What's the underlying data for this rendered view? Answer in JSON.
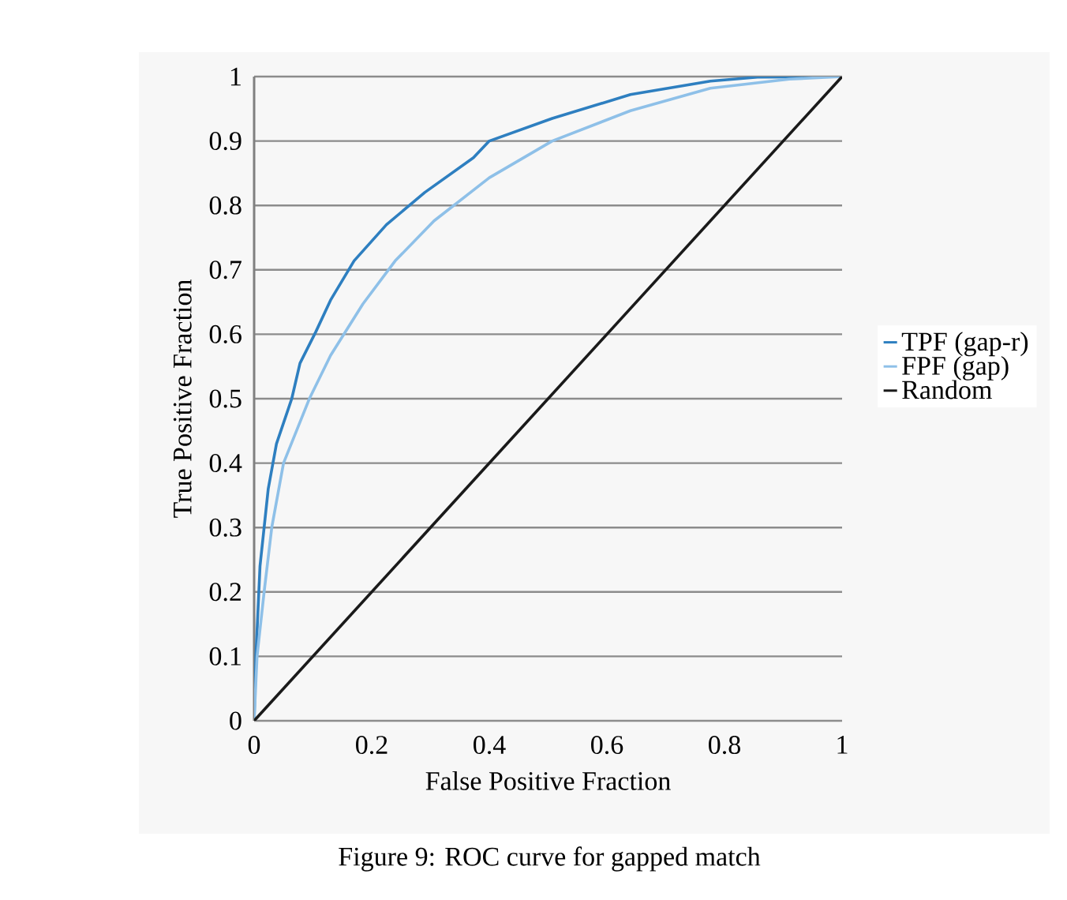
{
  "chart_data": {
    "type": "line",
    "xlabel": "False Positive Fraction",
    "ylabel": "True Positive Fraction",
    "annotations": [
      "Figure 9: ROC curve for gapped match"
    ],
    "xlim": [
      0,
      1
    ],
    "ylim": [
      0,
      1
    ],
    "xticks": [
      0,
      0.2,
      0.4,
      0.6,
      0.8,
      1
    ],
    "yticks": [
      0,
      0.1,
      0.2,
      0.3,
      0.4,
      0.5,
      0.6,
      0.7,
      0.8,
      0.9,
      1
    ],
    "grid": "y",
    "legend": "right",
    "marker": "none",
    "line_style": "solid",
    "series": [
      {
        "name": "TPF (gap-r)",
        "color": "#2e7fc0",
        "x": [
          0,
          0.003,
          0.01,
          0.024,
          0.038,
          0.064,
          0.078,
          0.105,
          0.13,
          0.17,
          0.225,
          0.29,
          0.373,
          0.4,
          0.507,
          0.64,
          0.776,
          0.856,
          1
        ],
        "values": [
          0,
          0.1,
          0.24,
          0.36,
          0.43,
          0.5,
          0.555,
          0.604,
          0.653,
          0.714,
          0.77,
          0.82,
          0.874,
          0.9,
          0.935,
          0.972,
          0.993,
          0.999,
          1
        ]
      },
      {
        "name": "FPF (gap)",
        "color": "#8ec0e8",
        "x": [
          0,
          0.005,
          0.017,
          0.03,
          0.05,
          0.094,
          0.13,
          0.185,
          0.24,
          0.306,
          0.4,
          0.507,
          0.64,
          0.776,
          0.91,
          1
        ],
        "values": [
          0,
          0.1,
          0.2,
          0.3,
          0.4,
          0.5,
          0.567,
          0.647,
          0.714,
          0.776,
          0.843,
          0.9,
          0.947,
          0.982,
          0.996,
          1
        ]
      },
      {
        "name": "Random",
        "color": "#1a1a1a",
        "x": [
          0,
          1
        ],
        "values": [
          0,
          1
        ]
      }
    ]
  }
}
